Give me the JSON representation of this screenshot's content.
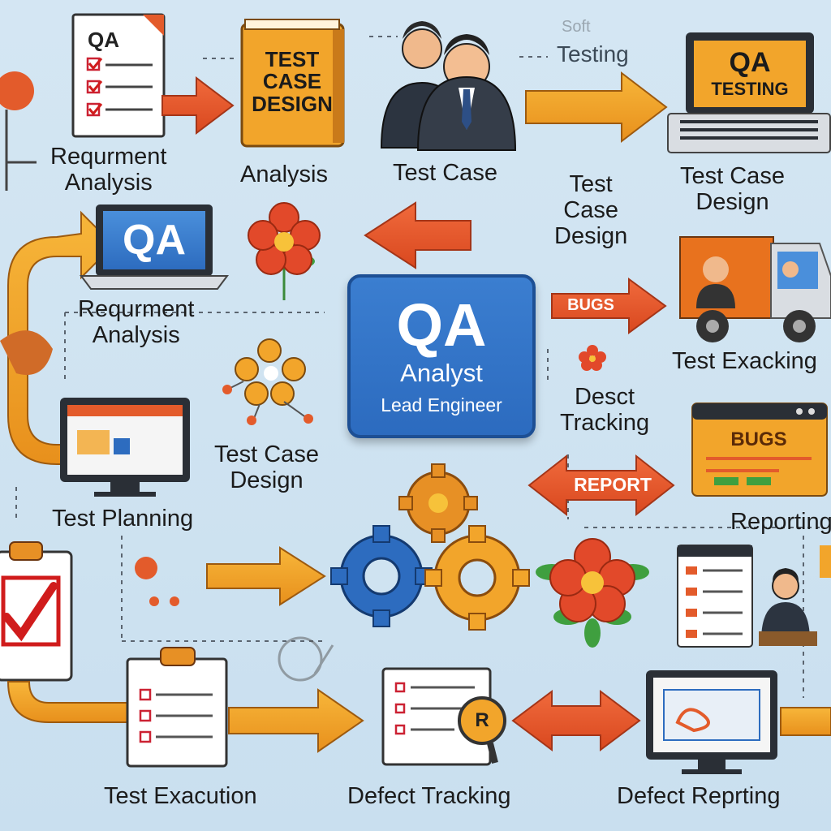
{
  "center": {
    "title": "QA",
    "subtitle": "Analyst",
    "role": "Lead Engineer"
  },
  "top_note": {
    "line1": "Soft",
    "line2": "Testing"
  },
  "icon_texts": {
    "checklist_top": "QA",
    "book": [
      "TEST",
      "CASE",
      "DESIGN"
    ],
    "laptop_qa_top": [
      "QA",
      "TESTING"
    ],
    "laptop_qa_mid": "QA",
    "bugs_arrow": "BUGS",
    "report_arrow": "REPORT",
    "bugs_window": "BUGS",
    "magnifier": "R"
  },
  "labels": {
    "req_top": [
      "Requrment",
      "Analysis"
    ],
    "analysis": "Analysis",
    "test_case_top": "Test Case",
    "test_case_design_mid": [
      "Test",
      "Case",
      "Design"
    ],
    "test_case_design_right": [
      "Test Case",
      "Design"
    ],
    "req_mid": [
      "Requrment",
      "Analysis"
    ],
    "test_exacking": "Test Exacking",
    "test_case_design_left": [
      "Test Case",
      "Design"
    ],
    "desct_tracking": [
      "Desct",
      "Tracking"
    ],
    "test_planning": "Test Planning",
    "reporting": "Reporting",
    "test_exaction": "Test Exacution",
    "defect_tracking": "Defect Tracking",
    "defect_reporting": "Defect Reprting"
  },
  "colors": {
    "accent_blue": "#2c6bbf",
    "arrow_orange": "#f2a52b",
    "arrow_red": "#e4512d",
    "monitor_dark": "#2a2f36"
  }
}
